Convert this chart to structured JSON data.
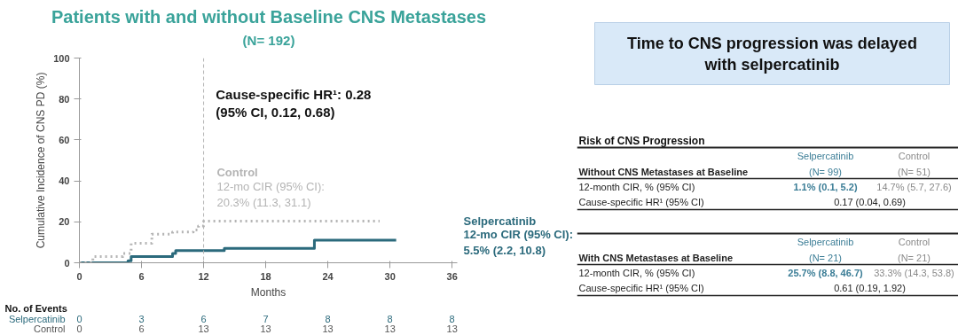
{
  "chart_data": [
    {
      "type": "step",
      "title": "Patients with and without Baseline CNS Metastases",
      "subtitle": "(N= 192)",
      "xlabel": "Months",
      "ylabel": "Cumulative Incidence of CNS PD (%)",
      "series": [
        {
          "name": "Selpercatinib",
          "color": "#2b6a7c",
          "line_style": "solid",
          "x": [
            0,
            4.7,
            5,
            9,
            9.3,
            14,
            22.7,
            30.6
          ],
          "values": [
            0,
            1,
            3,
            4.5,
            6,
            7,
            11,
            11
          ]
        },
        {
          "name": "Control",
          "color": "#b4b4b4",
          "line_style": "dotted",
          "x": [
            0,
            1.3,
            4.2,
            5,
            7,
            9,
            11,
            11.5,
            12,
            29
          ],
          "values": [
            0,
            3,
            4.5,
            9.5,
            14,
            15,
            16,
            18,
            20.3,
            20.3
          ]
        }
      ],
      "xlim": [
        0,
        36.5
      ],
      "xticks": [
        0,
        6,
        12,
        18,
        24,
        30,
        36
      ],
      "ylim": [
        0,
        100
      ],
      "yticks": [
        0,
        20,
        40,
        60,
        80,
        100
      ],
      "ref_lines": [
        {
          "axis": "x",
          "value": 12,
          "color": "#b4b4b4",
          "line_style": "dashed"
        }
      ],
      "grid": false,
      "marker": "none",
      "annotations": [
        "Cause-specific HR¹: 0.28 (95% CI, 0.12, 0.68)",
        "12-mo CIR (95% CI):\n20.3% (11.3, 31.1)",
        "12-mo CIR (95% CI):\n5.5% (2.2, 10.8)",
        "No. of Events",
        "0",
        "3",
        "6",
        "7",
        "8",
        "8",
        "8",
        "0",
        "6",
        "13",
        "13",
        "13",
        "13",
        "13"
      ]
    },
    {
      "type": "other",
      "title": "Time to CNS progression was delayed with selpercatinib"
    },
    {
      "type": "other",
      "title": "Risk of CNS Progression",
      "annotations": [
        "Selpercatinib",
        "Control",
        "Without CNS Metastases at Baseline",
        "(N= 99)",
        "(N= 51)",
        "12-month CIR, % (95% CI)",
        "1.1% (0.1, 5.2)",
        "14.7% (5.7, 27.6)",
        "Cause-specific HR¹ (95% CI)",
        "0.17 (0.04, 0.69)",
        "Selpercatinib",
        "Control",
        "With CNS Metastases at Baseline",
        "(N= 21)",
        "(N= 21)",
        "12-month CIR, % (95% CI)",
        "25.7% (8.8, 46.7)",
        "33.3% (14.3, 53.8)",
        "Cause-specific HR¹ (95% CI)",
        "0.61 (0.19, 1.92)"
      ]
    }
  ]
}
